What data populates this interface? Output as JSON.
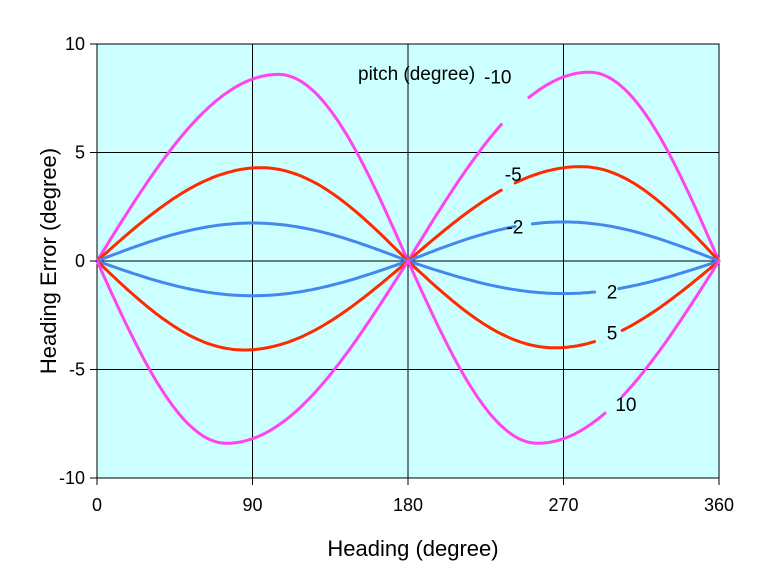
{
  "chart_data": {
    "type": "line",
    "title": "",
    "xlabel": "Heading (degree)",
    "ylabel": "Heading Error (degree)",
    "xlim": [
      0,
      360
    ],
    "ylim": [
      -10,
      10
    ],
    "x_ticks": [
      0,
      90,
      180,
      270,
      360
    ],
    "y_ticks": [
      10,
      5,
      0,
      -5,
      -10
    ],
    "x_tick_labels": [
      "0",
      "90",
      "180",
      "270",
      "360"
    ],
    "y_tick_labels": [
      "10",
      "5",
      "0",
      "-5",
      "-10"
    ],
    "grid": true,
    "legend_title": "pitch (degree)",
    "plot_background": "#ccffff",
    "series": [
      {
        "name": "-10",
        "color": "#ff44ee",
        "peak_x": [
          105,
          285
        ],
        "peak_y": [
          8.6,
          8.7
        ]
      },
      {
        "name": "-5",
        "color": "#ff2a00",
        "peak_x": [
          95,
          280
        ],
        "peak_y": [
          4.3,
          4.35
        ]
      },
      {
        "name": "-2",
        "color": "#4488ee",
        "peak_x": [
          90,
          270
        ],
        "peak_y": [
          1.75,
          1.8
        ]
      },
      {
        "name": "2",
        "color": "#4488ee",
        "peak_x": [
          90,
          270
        ],
        "peak_y": [
          -1.6,
          -1.5
        ]
      },
      {
        "name": "5",
        "color": "#ff2a00",
        "peak_x": [
          85,
          265
        ],
        "peak_y": [
          -4.1,
          -4.0
        ]
      },
      {
        "name": "10",
        "color": "#ff44ee",
        "peak_x": [
          75,
          255
        ],
        "peak_y": [
          -8.4,
          -8.4
        ]
      }
    ]
  }
}
